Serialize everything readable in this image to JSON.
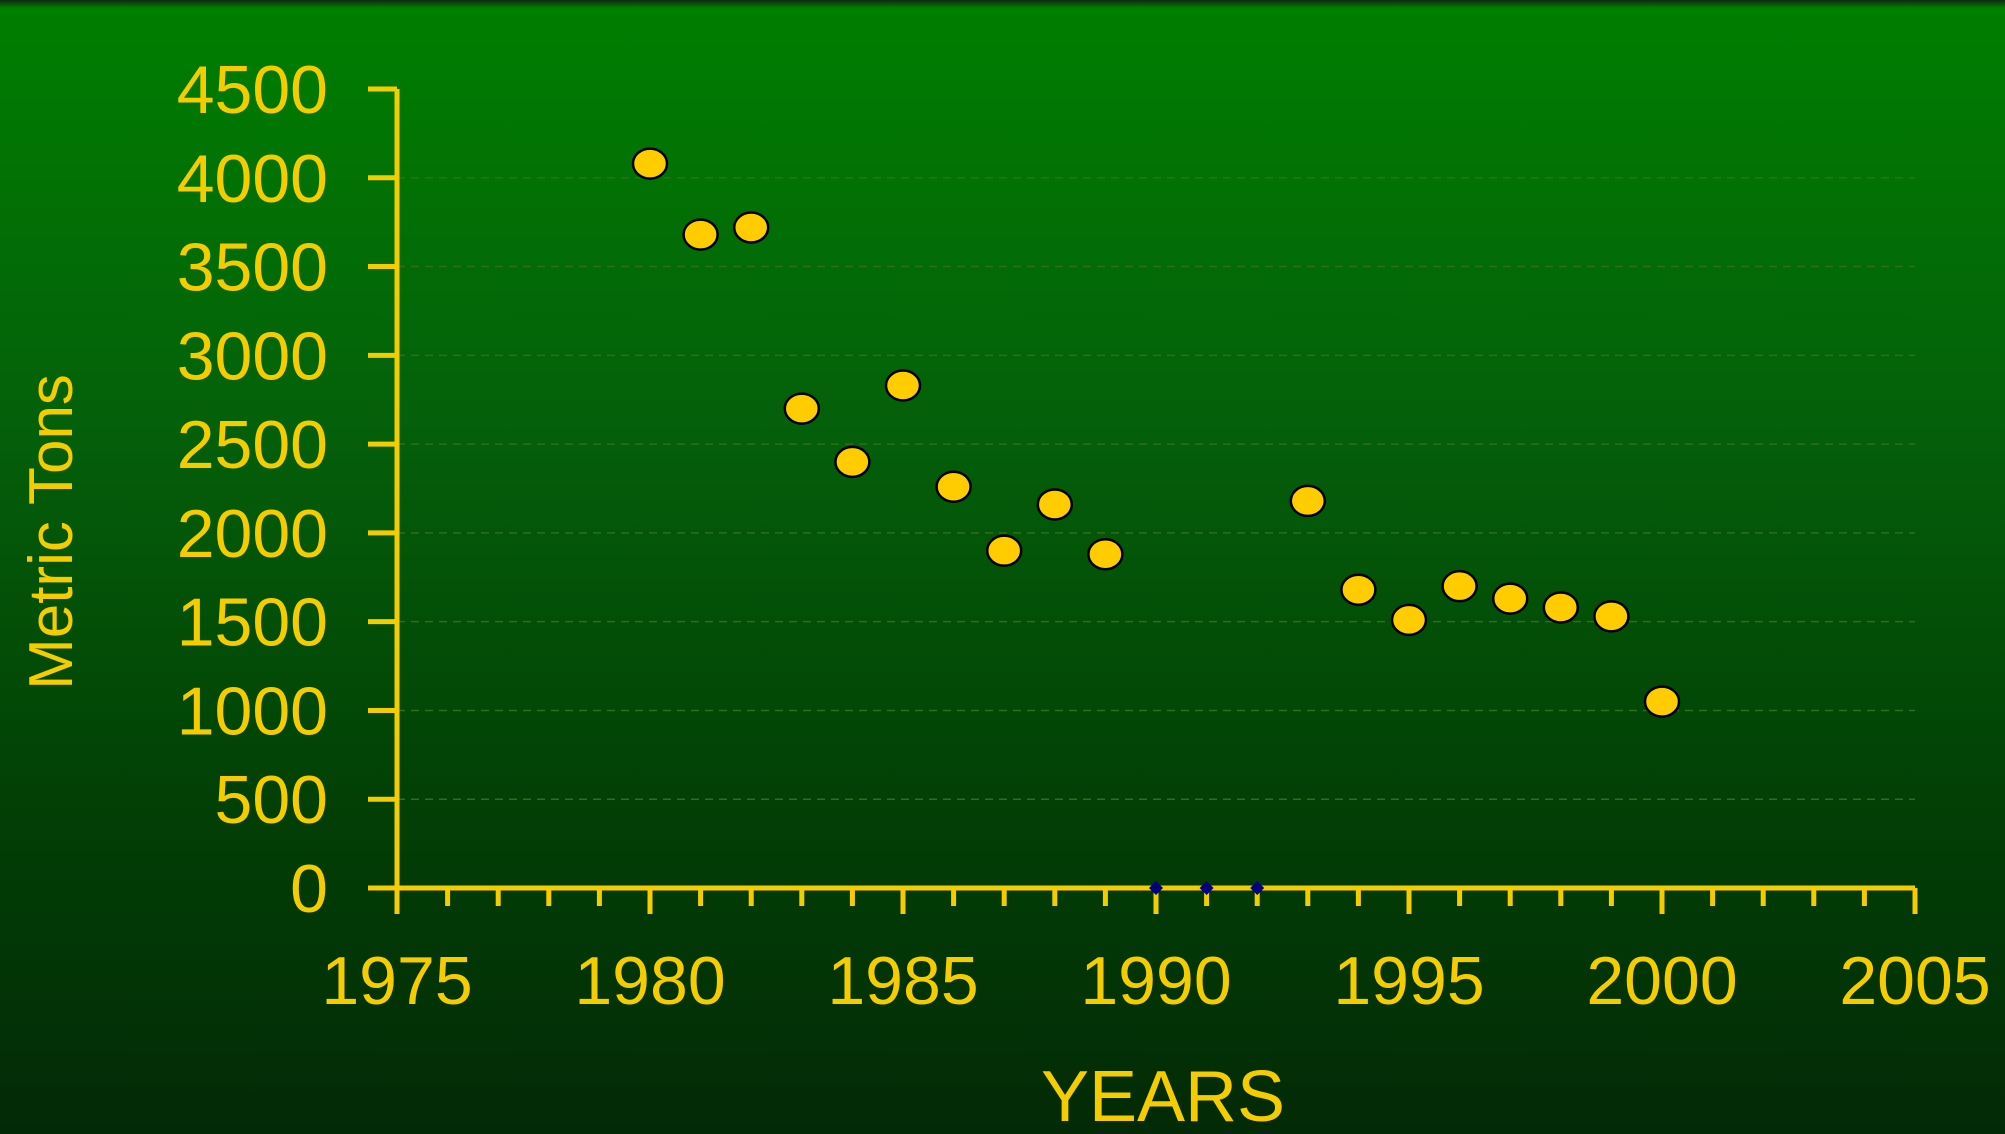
{
  "chart_data": {
    "type": "scatter",
    "title": "",
    "xlabel": "YEARS",
    "ylabel": "Metric Tons",
    "xlim": [
      1975,
      2005
    ],
    "ylim": [
      0,
      4500
    ],
    "x_ticks": [
      1975,
      1980,
      1985,
      1990,
      1995,
      2000,
      2005
    ],
    "y_ticks": [
      0,
      500,
      1000,
      1500,
      2000,
      2500,
      3000,
      3500,
      4000,
      4500
    ],
    "grid": "horizontal dashed",
    "legend": "none",
    "series": [
      {
        "marker": "circle",
        "color": "#ffcc00",
        "points": [
          {
            "x": 1980,
            "y": 4080
          },
          {
            "x": 1981,
            "y": 3680
          },
          {
            "x": 1982,
            "y": 3720
          },
          {
            "x": 1983,
            "y": 2700
          },
          {
            "x": 1984,
            "y": 2400
          },
          {
            "x": 1985,
            "y": 2830
          },
          {
            "x": 1986,
            "y": 2260
          },
          {
            "x": 1987,
            "y": 1900
          },
          {
            "x": 1988,
            "y": 2160
          },
          {
            "x": 1989,
            "y": 1880
          },
          {
            "x": 1993,
            "y": 2180
          },
          {
            "x": 1994,
            "y": 1680
          },
          {
            "x": 1995,
            "y": 1510
          },
          {
            "x": 1996,
            "y": 1700
          },
          {
            "x": 1997,
            "y": 1630
          },
          {
            "x": 1998,
            "y": 1580
          },
          {
            "x": 1999,
            "y": 1530
          },
          {
            "x": 2000,
            "y": 1050
          }
        ]
      },
      {
        "marker": "diamond",
        "color": "#000080",
        "points": [
          {
            "x": 1990,
            "y": 0
          },
          {
            "x": 1991,
            "y": 0
          },
          {
            "x": 1992,
            "y": 0
          }
        ]
      }
    ]
  },
  "colors": {
    "axis": "#f5cc00",
    "text": "#f5cc00",
    "grid": "#2e6e1c",
    "marker_fill": "#ffcc00",
    "marker_stroke": "#000000"
  }
}
